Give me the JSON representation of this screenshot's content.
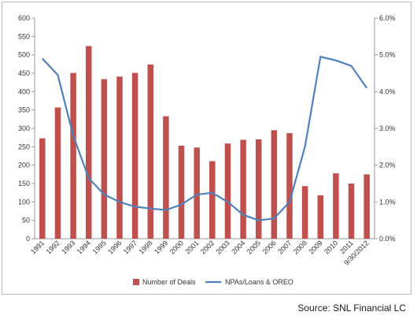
{
  "chart_data": {
    "type": "bar",
    "categories": [
      "1991",
      "1992",
      "1993",
      "1994",
      "1995",
      "1996",
      "1997",
      "1998",
      "1999",
      "2000",
      "2001",
      "2002",
      "2003",
      "2004",
      "2005",
      "2006",
      "2007",
      "2008",
      "2009",
      "2010",
      "2011",
      "9/30/2012"
    ],
    "series": [
      {
        "name": "Number of Deals",
        "type": "bar",
        "axis": "left",
        "color": "#c0504d",
        "values": [
          273,
          357,
          451,
          524,
          434,
          441,
          451,
          474,
          333,
          253,
          248,
          211,
          259,
          269,
          270,
          295,
          287,
          143,
          118,
          178,
          150,
          175
        ]
      },
      {
        "name": "NPAs/Loans & OREO",
        "type": "line",
        "axis": "right",
        "color": "#4f81bd",
        "values": [
          4.9,
          4.45,
          2.8,
          1.65,
          1.2,
          1.0,
          0.87,
          0.82,
          0.78,
          0.93,
          1.2,
          1.25,
          1.0,
          0.65,
          0.5,
          0.55,
          1.0,
          2.5,
          4.95,
          4.85,
          4.7,
          4.1
        ]
      }
    ],
    "y_left": {
      "min": 0,
      "max": 600,
      "step": 50,
      "ticks": [
        "0",
        "50",
        "100",
        "150",
        "200",
        "250",
        "300",
        "350",
        "400",
        "450",
        "500",
        "550",
        "600"
      ]
    },
    "y_right": {
      "min": 0,
      "max": 6,
      "step": 1,
      "ticks": [
        "0.0%",
        "1.0%",
        "2.0%",
        "3.0%",
        "4.0%",
        "5.0%",
        "6.0%"
      ]
    },
    "grid": false,
    "legend": "bottom"
  },
  "source": "Source: SNL Financial LC"
}
